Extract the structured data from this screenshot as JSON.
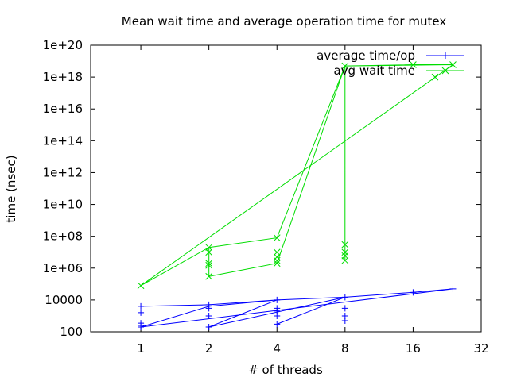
{
  "chart_data": {
    "type": "scatter",
    "title": "Mean wait time and average operation time for mutex",
    "xlabel": "# of threads",
    "ylabel": "time (nsec)",
    "xscale": "log2",
    "yscale": "log10",
    "xlim": [
      0.6,
      32
    ],
    "ylim": [
      100,
      1e+20
    ],
    "x_ticks": [
      1,
      2,
      4,
      8,
      16,
      32
    ],
    "x_tick_labels": [
      "1",
      "2",
      "4",
      "8",
      "16",
      "32"
    ],
    "y_ticks": [
      100,
      10000,
      1000000.0,
      100000000.0,
      10000000000.0,
      1000000000000.0,
      100000000000000.0,
      1e+16,
      1e+18,
      1e+20
    ],
    "y_tick_labels": [
      "100",
      "10000",
      "1e+06",
      "1e+08",
      "1e+10",
      "1e+12",
      "1e+14",
      "1e+16",
      "1e+18",
      "1e+20"
    ],
    "legend_position": "top-right",
    "series": [
      {
        "name": "average time/op",
        "color": "#0000ff",
        "marker": "plus",
        "points": [
          [
            1,
            1600
          ],
          [
            1,
            350
          ],
          [
            1,
            250
          ],
          [
            1,
            200
          ],
          [
            1,
            4000
          ],
          [
            2,
            200
          ],
          [
            2,
            1000
          ],
          [
            2,
            3000
          ],
          [
            2,
            5000
          ],
          [
            4,
            10000
          ],
          [
            4,
            300
          ],
          [
            4,
            1000
          ],
          [
            4,
            2000
          ],
          [
            4,
            3000
          ],
          [
            8,
            15000
          ],
          [
            8,
            500
          ],
          [
            8,
            1000
          ],
          [
            8,
            3000
          ],
          [
            16,
            30000
          ],
          [
            24,
            50000
          ]
        ],
        "path": [
          [
            1,
            4000
          ],
          [
            2,
            5000
          ],
          [
            4,
            10000
          ],
          [
            8,
            15000
          ],
          [
            16,
            30000
          ],
          [
            24,
            50000
          ],
          [
            1,
            200
          ],
          [
            2,
            4000
          ],
          [
            4,
            10000
          ],
          [
            8,
            15000
          ],
          [
            2,
            200
          ],
          [
            4,
            10000
          ],
          [
            8,
            15000
          ],
          [
            4,
            300
          ],
          [
            8,
            15000
          ]
        ]
      },
      {
        "name": "avg wait time",
        "color": "#00dd00",
        "marker": "x",
        "points": [
          [
            1,
            80000
          ],
          [
            2,
            20000000
          ],
          [
            2,
            10000000
          ],
          [
            2,
            2000000
          ],
          [
            2,
            1500000
          ],
          [
            2,
            300000
          ],
          [
            4,
            80000000
          ],
          [
            4,
            10000000
          ],
          [
            4,
            5000000
          ],
          [
            4,
            3000000
          ],
          [
            4,
            2000000
          ],
          [
            8,
            5e+18
          ],
          [
            8,
            30000000
          ],
          [
            8,
            10000000
          ],
          [
            8,
            6000000
          ],
          [
            8,
            3000000
          ],
          [
            16,
            6e+18
          ],
          [
            20,
            1e+18
          ],
          [
            24,
            6e+18
          ]
        ],
        "path": [
          [
            1,
            80000
          ],
          [
            24,
            6e+18
          ],
          [
            16,
            6e+18
          ],
          [
            8,
            5e+18
          ],
          [
            8,
            3000000
          ],
          [
            8,
            5e+18
          ],
          [
            4,
            80000000
          ],
          [
            2,
            20000000
          ],
          [
            1,
            80000
          ],
          [
            2,
            20000000
          ],
          [
            2,
            300000
          ],
          [
            4,
            2000000
          ],
          [
            8,
            5e+18
          ],
          [
            24,
            6e+18
          ]
        ]
      }
    ]
  }
}
